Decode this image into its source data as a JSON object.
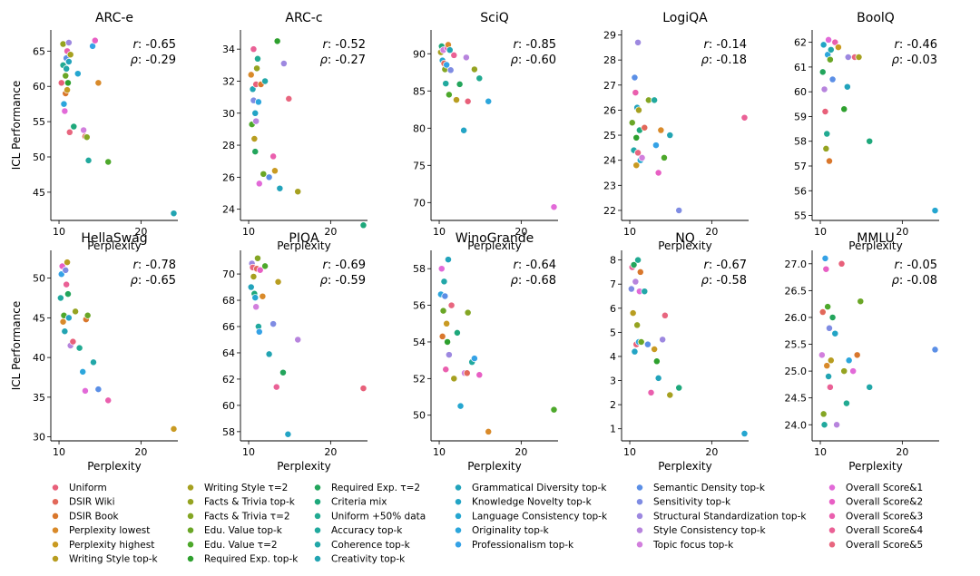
{
  "figure": {
    "ylabel": "ICL Performance",
    "xlabel": "Perplexity",
    "corr_labels": {
      "r": "r",
      "rho": "ρ"
    }
  },
  "legend": [
    {
      "label": "Uniform",
      "color": "#e8607a"
    },
    {
      "label": "DSIR Wiki",
      "color": "#e2685a"
    },
    {
      "label": "DSIR Book",
      "color": "#d9772c"
    },
    {
      "label": "Perplexity lowest",
      "color": "#d98a2a"
    },
    {
      "label": "Perplexity highest",
      "color": "#c99a22"
    },
    {
      "label": "Writing Style top-k",
      "color": "#b89d20"
    },
    {
      "label": "Writing Style τ=2",
      "color": "#a6a020"
    },
    {
      "label": "Facts & Trivia top-k",
      "color": "#95a321"
    },
    {
      "label": "Facts & Trivia τ=2",
      "color": "#84a624"
    },
    {
      "label": "Edu. Value top-k",
      "color": "#6aa626"
    },
    {
      "label": "Edu. Value τ=2",
      "color": "#4da82b"
    },
    {
      "label": "Required Exp. top-k",
      "color": "#2ea02e"
    },
    {
      "label": "Required Exp. τ=2",
      "color": "#23a55c"
    },
    {
      "label": "Criteria mix",
      "color": "#1ea87b"
    },
    {
      "label": "Uniform +50% data",
      "color": "#22aa92"
    },
    {
      "label": "Accuracy top-k",
      "color": "#21a99e"
    },
    {
      "label": "Coherence top-k",
      "color": "#22a7a8"
    },
    {
      "label": "Creativity top-k",
      "color": "#22a4b2"
    },
    {
      "label": "Grammatical Diversity top-k",
      "color": "#22a3bb"
    },
    {
      "label": "Knowledge Novelty top-k",
      "color": "#23a4c5"
    },
    {
      "label": "Language Consistency top-k",
      "color": "#25a6d0"
    },
    {
      "label": "Originality top-k",
      "color": "#2ca6dc"
    },
    {
      "label": "Professionalism top-k",
      "color": "#35a2e6"
    },
    {
      "label": "Semantic Density top-k",
      "color": "#5b8fe6"
    },
    {
      "label": "Sensitivity top-k",
      "color": "#7f8ce3"
    },
    {
      "label": "Structural Standardization top-k",
      "color": "#9d88e0"
    },
    {
      "label": "Style Consistency top-k",
      "color": "#b784dd"
    },
    {
      "label": "Topic focus top-k",
      "color": "#d27fdd"
    },
    {
      "label": "Overall Score&1",
      "color": "#e26ad8"
    },
    {
      "label": "Overall Score&2",
      "color": "#e85fc4"
    },
    {
      "label": "Overall Score&3",
      "color": "#ea5fae"
    },
    {
      "label": "Overall Score&4",
      "color": "#ea6196"
    },
    {
      "label": "Overall Score&5",
      "color": "#e8667f"
    }
  ],
  "chart_data": [
    {
      "type": "scatter",
      "title": "ARC-e",
      "r": "-0.65",
      "rho": "-0.29",
      "ylim": [
        41,
        68
      ],
      "yticks": [
        45,
        50,
        55,
        60,
        65
      ],
      "xlim": [
        9,
        24.5
      ],
      "xticks": [
        10,
        20
      ],
      "x": [
        10.3,
        10.5,
        10.5,
        10.6,
        10.7,
        10.8,
        10.8,
        10.9,
        10.9,
        11.0,
        11.0,
        11.1,
        11.2,
        11.2,
        11.3,
        11.4,
        11.8,
        12.3,
        13.0,
        13.2,
        13.4,
        13.6,
        14.1,
        14.4,
        14.8,
        16.0,
        24.0
      ],
      "y": [
        60.5,
        66.0,
        63.0,
        57.5,
        56.5,
        59.0,
        61.5,
        62.5,
        64.0,
        65.0,
        59.5,
        60.5,
        63.5,
        66.2,
        53.5,
        64.5,
        54.3,
        61.8,
        53.8,
        52.9,
        52.8,
        49.5,
        65.7,
        66.5,
        60.5,
        49.3,
        42.0
      ]
    },
    {
      "type": "scatter",
      "title": "ARC-c",
      "r": "-0.52",
      "rho": "-0.27",
      "ylim": [
        23.3,
        35.2
      ],
      "yticks": [
        24,
        26,
        28,
        30,
        32,
        34
      ],
      "xlim": [
        9,
        24.5
      ],
      "xticks": [
        10,
        20
      ],
      "x": [
        10.3,
        10.4,
        10.5,
        10.6,
        10.6,
        10.7,
        10.8,
        10.8,
        10.9,
        10.9,
        11.0,
        11.1,
        11.2,
        11.3,
        11.5,
        11.8,
        12.0,
        12.5,
        13.0,
        13.2,
        13.5,
        13.8,
        14.3,
        14.9,
        16.0,
        24.0
      ],
      "y": [
        32.4,
        29.3,
        31.5,
        30.8,
        34.0,
        28.4,
        27.6,
        30.0,
        29.5,
        31.8,
        32.8,
        33.4,
        30.7,
        25.6,
        31.8,
        26.2,
        32.0,
        26.0,
        27.3,
        26.4,
        34.5,
        25.3,
        33.1,
        30.9,
        25.1,
        23.0
      ]
    },
    {
      "type": "scatter",
      "title": "SciQ",
      "r": "-0.85",
      "rho": "-0.60",
      "ylim": [
        67.6,
        93.2
      ],
      "yticks": [
        70,
        75,
        80,
        85,
        90
      ],
      "xlim": [
        9,
        24.5
      ],
      "xticks": [
        10,
        20
      ],
      "x": [
        10.2,
        10.3,
        10.4,
        10.5,
        10.6,
        10.7,
        10.8,
        10.9,
        11.0,
        11.1,
        11.2,
        11.3,
        11.4,
        11.8,
        12.1,
        12.5,
        13.0,
        13.3,
        13.5,
        14.3,
        14.9,
        16.0,
        24.0
      ],
      "y": [
        90.2,
        91.0,
        89.1,
        90.5,
        88.7,
        87.9,
        86.0,
        88.5,
        90.8,
        91.2,
        84.5,
        90.5,
        87.8,
        89.8,
        83.8,
        85.9,
        79.7,
        89.5,
        83.6,
        87.9,
        86.7,
        83.6,
        69.4
      ]
    },
    {
      "type": "scatter",
      "title": "LogiQA",
      "r": "-0.14",
      "rho": "-0.18",
      "ylim": [
        21.6,
        29.2
      ],
      "yticks": [
        22,
        23,
        24,
        25,
        26,
        27,
        28,
        29
      ],
      "xlim": [
        9,
        24.5
      ],
      "xticks": [
        10,
        20
      ],
      "x": [
        10.3,
        10.5,
        10.6,
        10.7,
        10.8,
        10.8,
        10.9,
        11.0,
        11.0,
        11.1,
        11.2,
        11.3,
        11.5,
        11.8,
        12.3,
        13.0,
        13.2,
        13.5,
        13.8,
        14.2,
        14.9,
        16.0,
        24.0
      ],
      "y": [
        25.5,
        24.4,
        27.3,
        26.7,
        23.8,
        24.9,
        26.1,
        28.7,
        24.3,
        26.0,
        25.2,
        24.0,
        24.1,
        25.3,
        26.4,
        26.4,
        24.6,
        23.5,
        25.2,
        24.1,
        25.0,
        22.0,
        25.7
      ]
    },
    {
      "type": "scatter",
      "title": "BoolQ",
      "r": "-0.46",
      "rho": "-0.03",
      "ylim": [
        54.8,
        62.5
      ],
      "yticks": [
        55,
        56,
        57,
        58,
        59,
        60,
        61,
        62
      ],
      "xlim": [
        9,
        24.5
      ],
      "xticks": [
        10,
        20
      ],
      "x": [
        10.3,
        10.4,
        10.5,
        10.6,
        10.7,
        10.8,
        10.9,
        11.0,
        11.1,
        11.2,
        11.3,
        11.5,
        11.8,
        12.2,
        12.9,
        13.3,
        13.4,
        14.2,
        14.7,
        16.0,
        24.0
      ],
      "y": [
        60.8,
        61.9,
        60.1,
        59.2,
        57.7,
        58.3,
        61.5,
        62.1,
        57.2,
        61.3,
        61.7,
        60.5,
        62.0,
        61.8,
        59.3,
        60.2,
        61.4,
        61.4,
        61.4,
        58.0,
        55.2
      ]
    },
    {
      "type": "scatter",
      "title": "HellaSwag",
      "r": "-0.78",
      "rho": "-0.65",
      "ylim": [
        29.5,
        53.5
      ],
      "yticks": [
        30,
        35,
        40,
        45,
        50
      ],
      "xlim": [
        9,
        24.5
      ],
      "xticks": [
        10,
        20
      ],
      "x": [
        10.2,
        10.3,
        10.4,
        10.5,
        10.6,
        10.7,
        10.8,
        10.9,
        11.0,
        11.1,
        11.2,
        11.4,
        11.7,
        12.0,
        12.5,
        12.9,
        13.2,
        13.3,
        13.5,
        14.2,
        14.8,
        16.0,
        24.0
      ],
      "y": [
        47.5,
        50.5,
        51.5,
        44.5,
        45.3,
        43.3,
        51.0,
        49.2,
        52.0,
        48.0,
        45.0,
        41.5,
        42.0,
        45.8,
        41.2,
        38.2,
        35.8,
        44.8,
        45.3,
        39.4,
        36.0,
        34.6,
        31.0
      ]
    },
    {
      "type": "scatter",
      "title": "PIQA",
      "r": "-0.69",
      "rho": "-0.59",
      "ylim": [
        57.3,
        71.8
      ],
      "yticks": [
        58,
        60,
        62,
        64,
        66,
        68,
        70
      ],
      "xlim": [
        9,
        24.5
      ],
      "xticks": [
        10,
        20
      ],
      "x": [
        10.3,
        10.4,
        10.5,
        10.6,
        10.7,
        10.8,
        10.9,
        11.0,
        11.1,
        11.2,
        11.3,
        11.4,
        11.7,
        12.0,
        12.5,
        13.0,
        13.4,
        13.6,
        14.2,
        14.8,
        16.0,
        24.0
      ],
      "y": [
        69.0,
        70.8,
        70.5,
        69.8,
        68.5,
        68.2,
        67.5,
        70.4,
        71.2,
        66.0,
        65.6,
        70.3,
        68.3,
        70.6,
        63.9,
        66.2,
        61.4,
        69.4,
        62.5,
        57.8,
        65.0,
        61.3
      ]
    },
    {
      "type": "scatter",
      "title": "WinoGrande",
      "r": "-0.64",
      "rho": "-0.68",
      "ylim": [
        48.6,
        59.0
      ],
      "yticks": [
        50,
        52,
        54,
        56,
        58
      ],
      "xlim": [
        9,
        24.5
      ],
      "xticks": [
        10,
        20
      ],
      "x": [
        10.2,
        10.3,
        10.4,
        10.5,
        10.6,
        10.7,
        10.8,
        10.9,
        11.0,
        11.1,
        11.2,
        11.5,
        11.8,
        12.2,
        12.6,
        13.1,
        13.4,
        13.5,
        14.0,
        14.3,
        14.9,
        16.0,
        24.0
      ],
      "y": [
        56.6,
        58.0,
        54.3,
        55.7,
        57.3,
        56.5,
        52.5,
        55.0,
        54.0,
        58.5,
        53.3,
        56.0,
        52.0,
        54.5,
        50.5,
        52.3,
        52.3,
        55.6,
        52.9,
        53.1,
        52.2,
        49.1,
        50.3
      ]
    },
    {
      "type": "scatter",
      "title": "NQ",
      "r": "-0.67",
      "rho": "-0.58",
      "ylim": [
        0.5,
        8.4
      ],
      "yticks": [
        1,
        2,
        3,
        4,
        5,
        6,
        7,
        8
      ],
      "xlim": [
        9,
        24.5
      ],
      "xticks": [
        10,
        20
      ],
      "x": [
        10.2,
        10.3,
        10.4,
        10.5,
        10.6,
        10.7,
        10.8,
        10.9,
        11.0,
        11.1,
        11.2,
        11.3,
        11.4,
        11.8,
        12.2,
        12.6,
        13.0,
        13.3,
        13.5,
        14.0,
        14.3,
        14.9,
        16.0,
        24.0
      ],
      "y": [
        6.8,
        7.7,
        5.8,
        7.8,
        4.2,
        7.1,
        4.5,
        5.3,
        8.0,
        4.6,
        6.7,
        7.5,
        4.6,
        6.7,
        4.5,
        2.5,
        4.3,
        3.8,
        3.1,
        4.7,
        5.7,
        2.4,
        2.7,
        0.8
      ]
    },
    {
      "type": "scatter",
      "title": "MMLU",
      "r": "-0.05",
      "rho": "-0.08",
      "ylim": [
        23.7,
        27.25
      ],
      "yticks": [
        24.0,
        24.5,
        25.0,
        25.5,
        26.0,
        26.5,
        27.0
      ],
      "xlim": [
        9,
        24.5
      ],
      "xticks": [
        10,
        20
      ],
      "x": [
        10.2,
        10.3,
        10.4,
        10.5,
        10.6,
        10.7,
        10.8,
        10.9,
        11.0,
        11.1,
        11.2,
        11.3,
        11.5,
        11.8,
        12.0,
        12.6,
        12.9,
        13.2,
        13.5,
        14.0,
        14.5,
        14.9,
        16.0,
        24.0
      ],
      "y": [
        25.3,
        26.1,
        24.2,
        24.0,
        27.1,
        26.9,
        25.1,
        26.2,
        24.9,
        25.8,
        24.7,
        25.2,
        26.0,
        25.7,
        24.0,
        27.0,
        25.0,
        24.4,
        25.2,
        25.0,
        25.3,
        26.3,
        24.7,
        25.4
      ]
    }
  ]
}
